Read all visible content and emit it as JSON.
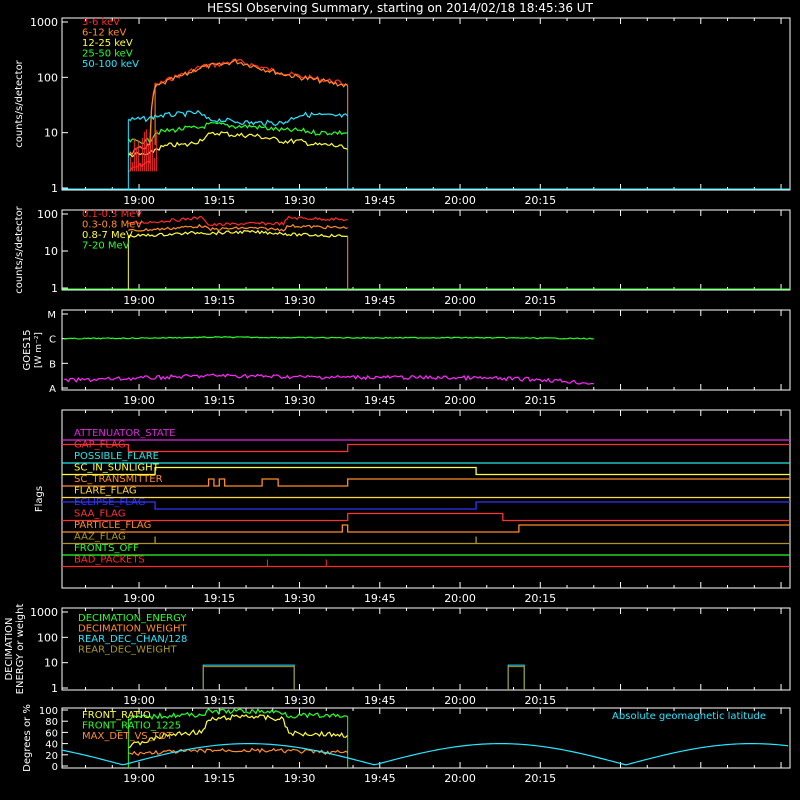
{
  "title": "HESSI Observing Summary, starting on 2014/02/18 18:45:36 UT",
  "time_ticks": [
    "19:00",
    "19:15",
    "19:30",
    "19:45",
    "20:00",
    "20:15"
  ],
  "chart_data": [
    {
      "type": "line",
      "name": "lightcurves_low",
      "ylabel": "counts/s/detector",
      "yscale": "log",
      "ylim": [
        1,
        1000
      ],
      "yticks": [
        "1",
        "10",
        "100",
        "1000"
      ],
      "x": [
        "18:58",
        "19:02",
        "19:03",
        "19:06",
        "19:09",
        "19:11",
        "19:13",
        "19:15",
        "19:18",
        "19:21",
        "19:24",
        "19:27",
        "19:30",
        "19:33",
        "19:36",
        "19:39"
      ],
      "series": [
        {
          "name": "3-6 keV",
          "color": "#ff2a2a",
          "values": [
            2,
            3,
            70,
            95,
            120,
            150,
            165,
            170,
            200,
            170,
            140,
            120,
            105,
            95,
            85,
            75
          ]
        },
        {
          "name": "6-12 keV",
          "color": "#ff8c28",
          "values": [
            4,
            6,
            65,
            90,
            115,
            145,
            160,
            165,
            195,
            165,
            135,
            115,
            100,
            90,
            80,
            70
          ]
        },
        {
          "name": "12-25 keV",
          "color": "#ffff3c",
          "values": [
            4,
            4,
            5,
            6,
            6,
            7,
            9,
            10,
            9,
            9,
            8,
            7,
            7,
            6,
            6,
            5
          ]
        },
        {
          "name": "25-50 keV",
          "color": "#28ff28",
          "values": [
            7,
            7,
            10,
            11,
            12,
            12,
            14,
            14,
            13,
            13,
            12,
            11,
            11,
            10,
            10,
            10
          ]
        },
        {
          "name": "50-100 keV",
          "color": "#28e6ff",
          "values": [
            17,
            18,
            20,
            21,
            22,
            23,
            17,
            17,
            16,
            15,
            15,
            15,
            21,
            21,
            20,
            20
          ]
        }
      ]
    },
    {
      "type": "line",
      "name": "lightcurves_high",
      "ylabel": "counts/s/detector",
      "yscale": "log",
      "ylim": [
        1,
        100
      ],
      "yticks": [
        "1",
        "10",
        "100"
      ],
      "x": [
        "18:58",
        "19:05",
        "19:12",
        "19:13",
        "19:20",
        "19:27",
        "19:28",
        "19:33",
        "19:39"
      ],
      "series": [
        {
          "name": "0.1-0.3 MeV",
          "color": "#ff2a2a",
          "values": [
            55,
            65,
            80,
            50,
            55,
            55,
            80,
            75,
            70
          ]
        },
        {
          "name": "0.3-0.8 MeV",
          "color": "#ff8c28",
          "values": [
            35,
            40,
            48,
            38,
            42,
            38,
            48,
            45,
            42
          ]
        },
        {
          "name": "0.8-7 MeV",
          "color": "#ffff3c",
          "values": [
            25,
            28,
            32,
            30,
            33,
            30,
            28,
            27,
            25
          ]
        },
        {
          "name": "7-20 MeV",
          "color": "#28ff28",
          "values": [
            1,
            1,
            1,
            1,
            1,
            1,
            1,
            1,
            1
          ]
        }
      ]
    },
    {
      "type": "line",
      "name": "goes",
      "ylabel": "GOES15",
      "ylabel2": "[W m⁻²]",
      "yscale": "log",
      "yticks": [
        "A",
        "B",
        "C",
        "M"
      ],
      "x": [
        "18:46",
        "19:00",
        "19:15",
        "19:30",
        "19:45",
        "20:00",
        "20:15",
        "20:25"
      ],
      "series": [
        {
          "name": "GOES 1-8 A",
          "color": "#28ff28",
          "values": [
            1e-06,
            1.05e-06,
            1.15e-06,
            1.1e-06,
            1.08e-06,
            1.1e-06,
            1.05e-06,
            1e-06
          ]
        },
        {
          "name": "GOES 0.5-4 A",
          "color": "#ff28ff",
          "values": [
            2e-08,
            2.5e-08,
            3.2e-08,
            2.8e-08,
            2.7e-08,
            2.6e-08,
            2.2e-08,
            1.5e-08
          ]
        }
      ]
    },
    {
      "type": "line",
      "name": "flags",
      "ylabel": "Flags",
      "series": [
        {
          "name": "ATTENUATOR_STATE",
          "color": "#dc28dc"
        },
        {
          "name": "GAP_FLAG",
          "color": "#ff3232"
        },
        {
          "name": "POSSIBLE_FLARE",
          "color": "#28e6e6"
        },
        {
          "name": "SC_IN_SUNLIGHT",
          "color": "#ffff3c"
        },
        {
          "name": "SC_TRANSMITTER",
          "color": "#ff8c28"
        },
        {
          "name": "FLARE_FLAG",
          "color": "#ffdc3c"
        },
        {
          "name": "ECLIPSE_FLAG",
          "color": "#3232ff"
        },
        {
          "name": "SAA_FLAG",
          "color": "#ff3232"
        },
        {
          "name": "PARTICLE_FLAG",
          "color": "#ff8c28"
        },
        {
          "name": "AAZ_FLAG",
          "color": "#aa9628"
        },
        {
          "name": "FRONTS_OFF",
          "color": "#28ff28"
        },
        {
          "name": "BAD_PACKETS",
          "color": "#ff2828"
        }
      ]
    },
    {
      "type": "line",
      "name": "decimation",
      "ylabel": "DECIMATION",
      "ylabel2": "ENERGY or weight",
      "yscale": "log",
      "ylim": [
        1,
        1000
      ],
      "yticks": [
        "1",
        "10",
        "100",
        "1000"
      ],
      "series": [
        {
          "name": "DECIMATION_ENERGY",
          "color": "#28ff28"
        },
        {
          "name": "DECIMATION_WEIGHT",
          "color": "#ff8c28"
        },
        {
          "name": "REAR_DEC_CHAN/128",
          "color": "#28e6ff"
        },
        {
          "name": "REAR_DEC_WEIGHT",
          "color": "#aa9628"
        }
      ]
    },
    {
      "type": "line",
      "name": "ratios",
      "ylabel": "Degrees or %",
      "ylim": [
        0,
        100
      ],
      "yticks": [
        "0",
        "20",
        "40",
        "60",
        "80",
        "100"
      ],
      "x": [
        "18:58",
        "19:05",
        "19:12",
        "19:13",
        "19:20",
        "19:27",
        "19:28",
        "19:33",
        "19:39"
      ],
      "series": [
        {
          "name": "FRONT_RATIO",
          "color": "#ffff3c",
          "values": [
            35,
            55,
            62,
            82,
            90,
            83,
            58,
            58,
            55
          ]
        },
        {
          "name": "FRONT_RATIO_1225",
          "color": "#28ff28",
          "values": [
            85,
            90,
            92,
            97,
            98,
            96,
            90,
            90,
            88
          ]
        },
        {
          "name": "MAX_DET_VS_TOT",
          "color": "#ff8c28",
          "values": [
            22,
            25,
            27,
            28,
            28,
            27,
            27,
            25,
            24
          ]
        }
      ],
      "annotation": "Absolute geomagnetic latitude"
    }
  ]
}
